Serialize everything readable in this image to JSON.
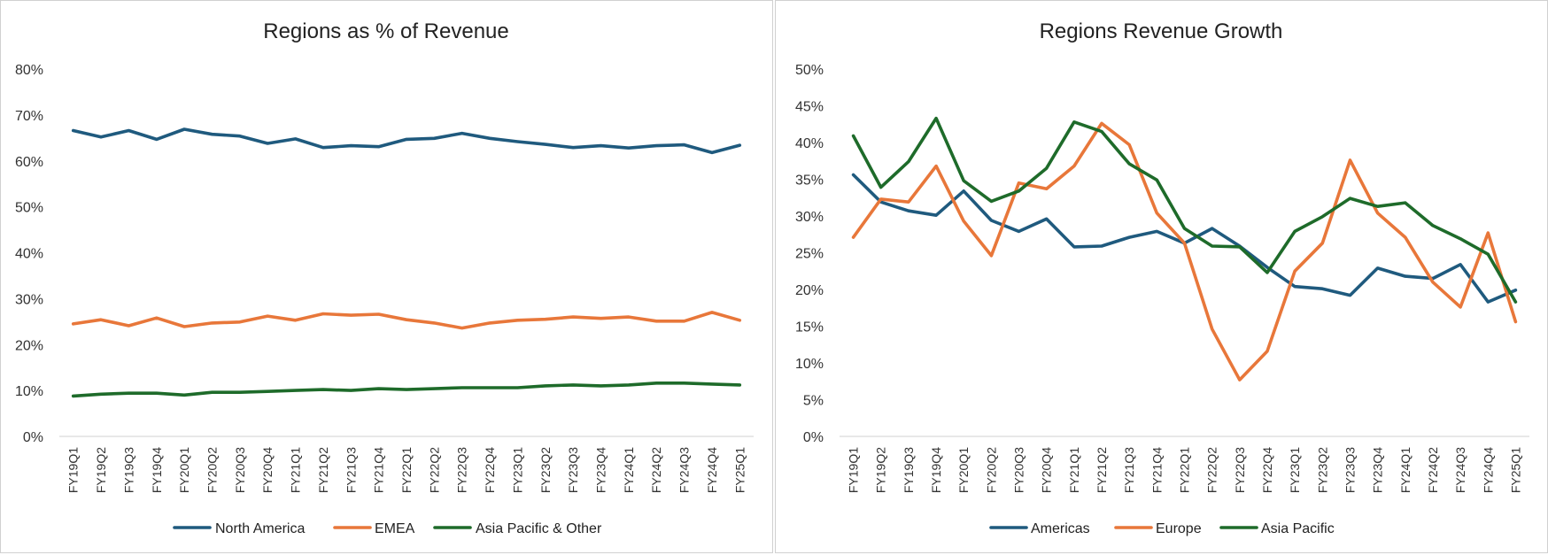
{
  "chart_data": [
    {
      "type": "line",
      "title": "Regions as % of Revenue",
      "xlabel": "",
      "ylabel": "",
      "ylim": [
        0,
        80
      ],
      "yticks": [
        "0%",
        "10%",
        "20%",
        "30%",
        "40%",
        "50%",
        "60%",
        "70%",
        "80%"
      ],
      "yticks_values": [
        0,
        10,
        20,
        30,
        40,
        50,
        60,
        70,
        80
      ],
      "grid": false,
      "legend_position": "bottom",
      "categories": [
        "FY19Q1",
        "FY19Q2",
        "FY19Q3",
        "FY19Q4",
        "FY20Q1",
        "FY20Q2",
        "FY20Q3",
        "FY20Q4",
        "FY21Q1",
        "FY21Q2",
        "FY21Q3",
        "FY21Q4",
        "FY22Q1",
        "FY22Q2",
        "FY22Q3",
        "FY22Q4",
        "FY23Q1",
        "FY23Q2",
        "FY23Q3",
        "FY23Q4",
        "FY24Q1",
        "FY24Q2",
        "FY24Q3",
        "FY24Q4",
        "FY25Q1"
      ],
      "series": [
        {
          "name": "North America",
          "color": "#1f5a7e",
          "values": [
            66.6,
            65.2,
            66.6,
            64.7,
            66.9,
            65.8,
            65.4,
            63.8,
            64.8,
            62.9,
            63.3,
            63.1,
            64.7,
            64.9,
            66.0,
            64.9,
            64.2,
            63.6,
            62.9,
            63.3,
            62.8,
            63.3,
            63.5,
            61.8,
            63.4
          ]
        },
        {
          "name": "EMEA",
          "color": "#e8773a",
          "values": [
            24.5,
            25.4,
            24.1,
            25.8,
            23.9,
            24.7,
            24.9,
            26.2,
            25.3,
            26.7,
            26.4,
            26.6,
            25.4,
            24.7,
            23.6,
            24.7,
            25.3,
            25.5,
            26.0,
            25.7,
            26.0,
            25.1,
            25.1,
            27.0,
            25.3
          ]
        },
        {
          "name": "Asia Pacific & Other",
          "color": "#1e6b2a",
          "values": [
            8.8,
            9.2,
            9.4,
            9.4,
            9.0,
            9.6,
            9.6,
            9.8,
            10.0,
            10.2,
            10.0,
            10.4,
            10.2,
            10.4,
            10.6,
            10.6,
            10.6,
            11.0,
            11.2,
            11.0,
            11.2,
            11.6,
            11.6,
            11.4,
            11.2
          ]
        }
      ]
    },
    {
      "type": "line",
      "title": "Regions Revenue Growth",
      "xlabel": "",
      "ylabel": "",
      "ylim": [
        0,
        50
      ],
      "yticks": [
        "0%",
        "5%",
        "10%",
        "15%",
        "20%",
        "25%",
        "30%",
        "35%",
        "40%",
        "45%",
        "50%"
      ],
      "yticks_values": [
        0,
        5,
        10,
        15,
        20,
        25,
        30,
        35,
        40,
        45,
        50
      ],
      "grid": false,
      "legend_position": "bottom",
      "categories": [
        "FY19Q1",
        "FY19Q2",
        "FY19Q3",
        "FY19Q4",
        "FY20Q1",
        "FY20Q2",
        "FY20Q3",
        "FY20Q4",
        "FY21Q1",
        "FY21Q2",
        "FY21Q3",
        "FY21Q4",
        "FY22Q1",
        "FY22Q2",
        "FY22Q3",
        "FY22Q4",
        "FY23Q1",
        "FY23Q2",
        "FY23Q3",
        "FY23Q4",
        "FY24Q1",
        "FY24Q2",
        "FY24Q3",
        "FY24Q4",
        "FY25Q1"
      ],
      "series": [
        {
          "name": "Americas",
          "color": "#1f5a7e",
          "values": [
            35.6,
            31.9,
            30.7,
            30.1,
            33.4,
            29.4,
            27.9,
            29.6,
            25.8,
            25.9,
            27.1,
            27.9,
            26.3,
            28.3,
            25.9,
            23.0,
            20.4,
            20.1,
            19.2,
            22.9,
            21.8,
            21.5,
            23.4,
            18.3,
            19.9
          ]
        },
        {
          "name": "Europe",
          "color": "#e8773a",
          "values": [
            27.1,
            32.3,
            31.9,
            36.8,
            29.3,
            24.6,
            34.5,
            33.7,
            36.8,
            42.6,
            39.7,
            30.4,
            26.3,
            14.6,
            7.7,
            11.6,
            22.5,
            26.3,
            37.6,
            30.4,
            27.1,
            21.0,
            17.6,
            27.7,
            15.6
          ]
        },
        {
          "name": "Asia Pacific",
          "color": "#1e6b2a",
          "values": [
            40.9,
            33.9,
            37.4,
            43.3,
            34.8,
            32.0,
            33.4,
            36.5,
            42.8,
            41.5,
            37.1,
            34.9,
            28.3,
            25.9,
            25.8,
            22.3,
            27.9,
            29.9,
            32.4,
            31.3,
            31.8,
            28.7,
            26.9,
            24.8,
            18.3
          ]
        }
      ]
    }
  ]
}
